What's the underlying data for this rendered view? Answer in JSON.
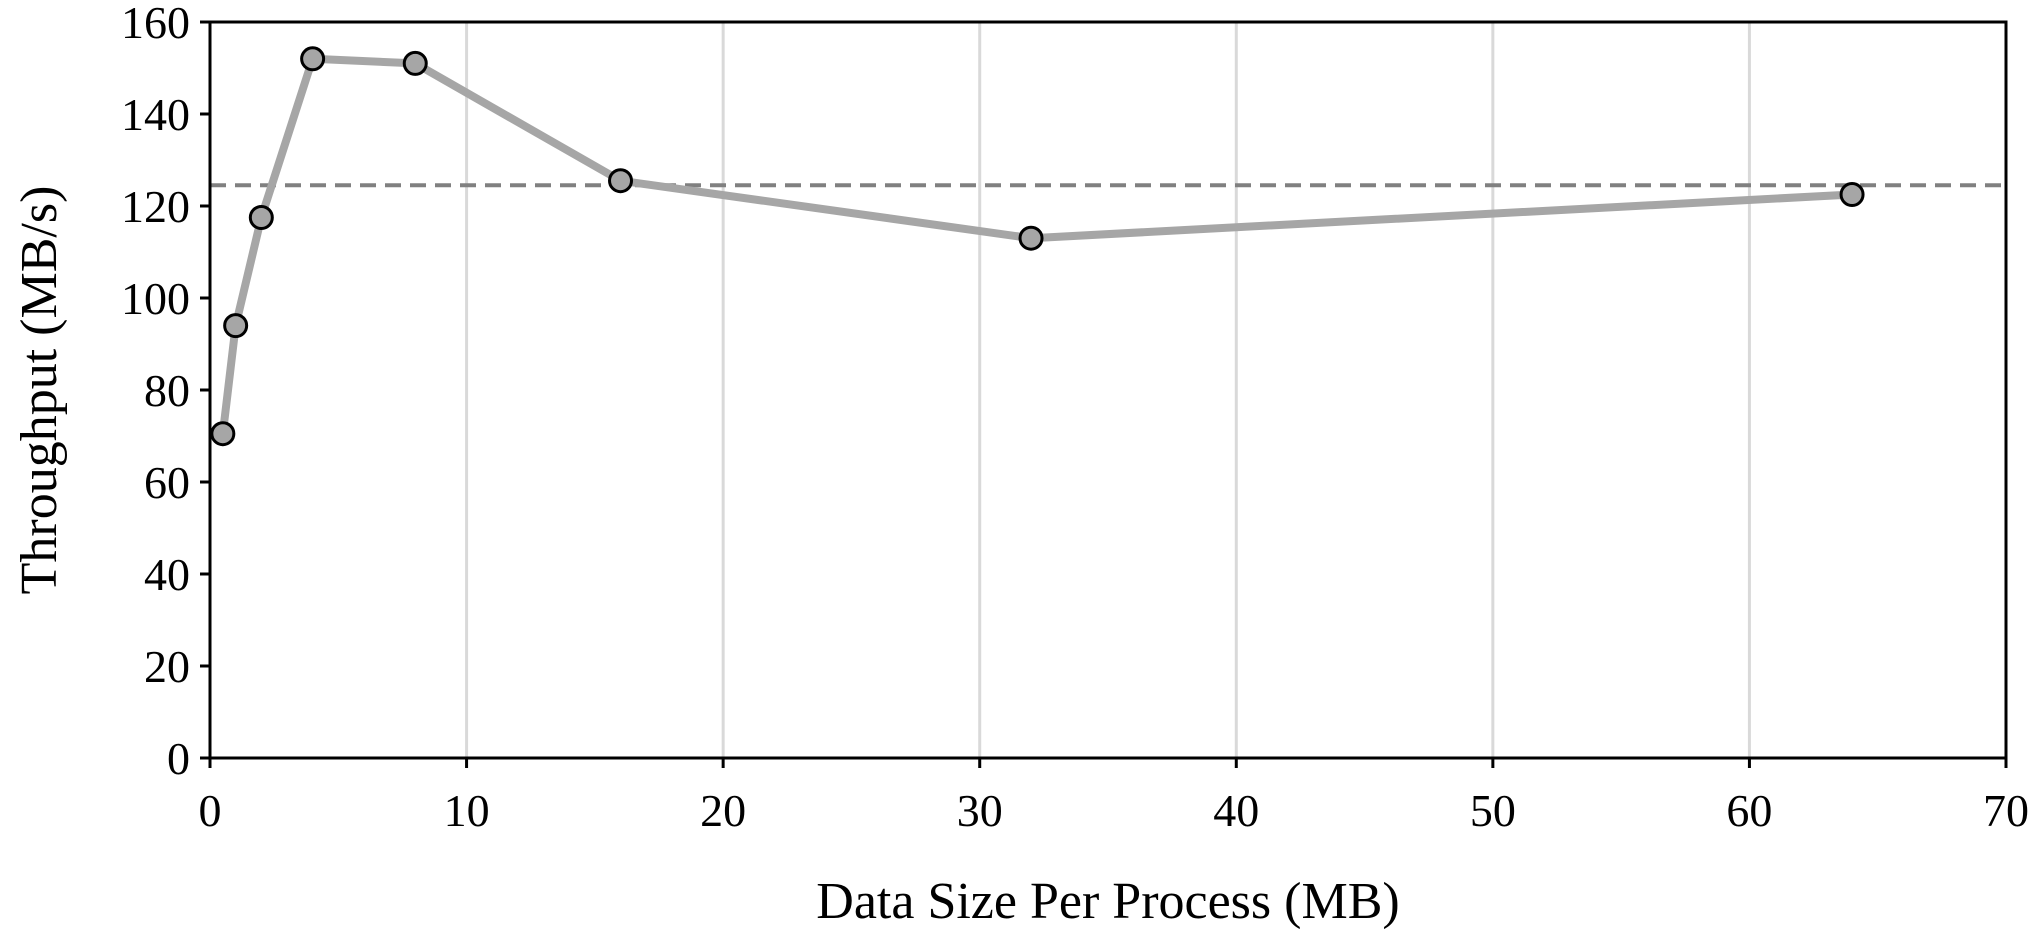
{
  "chart_data": {
    "type": "line",
    "title": "",
    "xlabel": "Data Size Per Process (MB)",
    "ylabel": "Throughput (MB/s)",
    "xlim": [
      0,
      70
    ],
    "ylim": [
      0,
      160
    ],
    "xticks": [
      0,
      10,
      20,
      30,
      40,
      50,
      60,
      70
    ],
    "yticks": [
      0,
      20,
      40,
      60,
      80,
      100,
      120,
      140,
      160
    ],
    "grid": "vertical",
    "series": [
      {
        "x": [
          0.5,
          1,
          2,
          4,
          8,
          16,
          32,
          64
        ],
        "y": [
          70.5,
          94,
          117.5,
          152,
          151,
          125.5,
          113,
          122.5
        ],
        "color": "#a6a6a6",
        "marker": "circle"
      }
    ],
    "reference_line": {
      "y": 124.5,
      "style": "dashed",
      "color": "#808080"
    }
  }
}
